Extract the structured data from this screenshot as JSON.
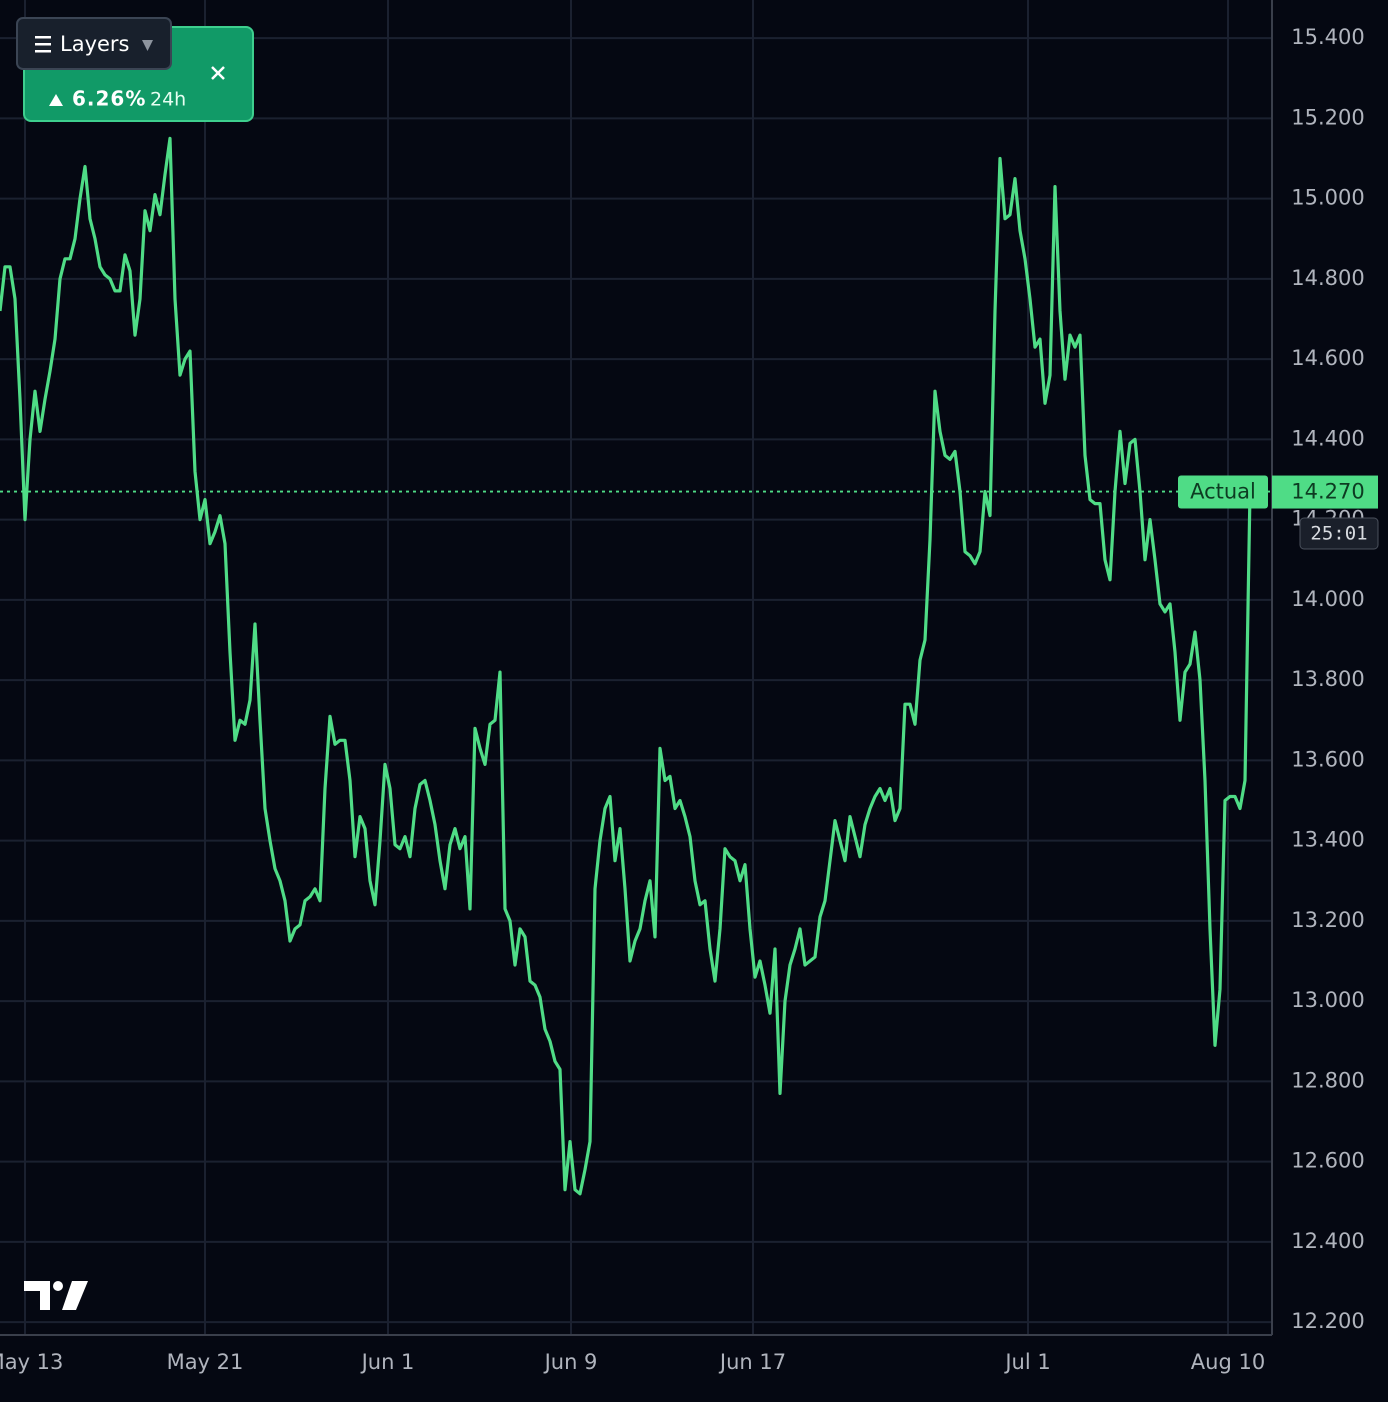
{
  "chart_data": {
    "type": "line",
    "series": [
      {
        "name": "Actual",
        "color": "#4fdc86",
        "values": [
          14.72,
          14.83,
          14.83,
          14.75,
          14.5,
          14.2,
          14.4,
          14.52,
          14.42,
          14.5,
          14.57,
          14.65,
          14.8,
          14.85,
          14.85,
          14.9,
          15.0,
          15.08,
          14.95,
          14.9,
          14.83,
          14.81,
          14.8,
          14.77,
          14.77,
          14.86,
          14.82,
          14.66,
          14.75,
          14.97,
          14.92,
          15.01,
          14.96,
          15.06,
          15.15,
          14.75,
          14.56,
          14.6,
          14.62,
          14.32,
          14.2,
          14.25,
          14.14,
          14.17,
          14.21,
          14.14,
          13.87,
          13.65,
          13.7,
          13.69,
          13.75,
          13.94,
          13.7,
          13.48,
          13.4,
          13.33,
          13.3,
          13.25,
          13.15,
          13.18,
          13.19,
          13.25,
          13.26,
          13.28,
          13.25,
          13.53,
          13.71,
          13.64,
          13.65,
          13.65,
          13.55,
          13.36,
          13.46,
          13.43,
          13.3,
          13.24,
          13.4,
          13.59,
          13.53,
          13.39,
          13.38,
          13.41,
          13.36,
          13.48,
          13.54,
          13.55,
          13.5,
          13.44,
          13.35,
          13.28,
          13.39,
          13.43,
          13.38,
          13.41,
          13.23,
          13.68,
          13.63,
          13.59,
          13.69,
          13.7,
          13.82,
          13.23,
          13.2,
          13.09,
          13.18,
          13.16,
          13.05,
          13.04,
          13.01,
          12.93,
          12.9,
          12.85,
          12.83,
          12.53,
          12.65,
          12.53,
          12.52,
          12.58,
          12.65,
          13.28,
          13.4,
          13.48,
          13.51,
          13.35,
          13.43,
          13.28,
          13.1,
          13.15,
          13.18,
          13.25,
          13.3,
          13.16,
          13.63,
          13.55,
          13.56,
          13.48,
          13.5,
          13.46,
          13.41,
          13.3,
          13.24,
          13.25,
          13.13,
          13.05,
          13.18,
          13.38,
          13.36,
          13.35,
          13.3,
          13.34,
          13.18,
          13.06,
          13.1,
          13.04,
          12.97,
          13.13,
          12.77,
          13.0,
          13.09,
          13.13,
          13.18,
          13.09,
          13.1,
          13.11,
          13.21,
          13.25,
          13.35,
          13.45,
          13.4,
          13.35,
          13.46,
          13.41,
          13.36,
          13.44,
          13.48,
          13.51,
          13.53,
          13.5,
          13.53,
          13.45,
          13.48,
          13.74,
          13.74,
          13.69,
          13.85,
          13.9,
          14.15,
          14.52,
          14.42,
          14.36,
          14.35,
          14.37,
          14.27,
          14.12,
          14.11,
          14.09,
          14.12,
          14.27,
          14.21,
          14.72,
          15.1,
          14.95,
          14.96,
          15.05,
          14.92,
          14.85,
          14.75,
          14.63,
          14.65,
          14.49,
          14.56,
          15.03,
          14.72,
          14.55,
          14.66,
          14.63,
          14.66,
          14.36,
          14.25,
          14.24,
          14.24,
          14.1,
          14.05,
          14.27,
          14.42,
          14.29,
          14.39,
          14.4,
          14.27,
          14.1,
          14.2,
          14.1,
          13.99,
          13.97,
          13.99,
          13.87,
          13.7,
          13.82,
          13.84,
          13.92,
          13.8,
          13.55,
          13.18,
          12.89,
          13.03,
          13.5,
          13.51,
          13.51,
          13.48,
          13.55,
          14.27
        ]
      }
    ],
    "xlim": [
      0,
      254.4
    ],
    "xticks": [
      {
        "value": 5,
        "label": "May 13"
      },
      {
        "value": 41,
        "label": "May 21"
      },
      {
        "value": 77.6,
        "label": "Jun 1"
      },
      {
        "value": 114.2,
        "label": "Jun 9"
      },
      {
        "value": 150.6,
        "label": "Jun 17"
      },
      {
        "value": 205.6,
        "label": "Jul 1"
      },
      {
        "value": 245.6,
        "label": "Aug 10"
      }
    ],
    "ylim": [
      12.168,
      15.495
    ],
    "yticks": [
      {
        "value": 12.2,
        "label": "12.200"
      },
      {
        "value": 12.4,
        "label": "12.400"
      },
      {
        "value": 12.6,
        "label": "12.600"
      },
      {
        "value": 12.8,
        "label": "12.800"
      },
      {
        "value": 13.0,
        "label": "13.000"
      },
      {
        "value": 13.2,
        "label": "13.200"
      },
      {
        "value": 13.4,
        "label": "13.400"
      },
      {
        "value": 13.6,
        "label": "13.600"
      },
      {
        "value": 13.8,
        "label": "13.800"
      },
      {
        "value": 14.0,
        "label": "14.000"
      },
      {
        "value": 14.2,
        "label": "14.200"
      },
      {
        "value": 14.4,
        "label": "14.400"
      },
      {
        "value": 14.6,
        "label": "14.600"
      },
      {
        "value": 14.8,
        "label": "14.800"
      },
      {
        "value": 15.0,
        "label": "15.000"
      },
      {
        "value": 15.2,
        "label": "15.200"
      },
      {
        "value": 15.4,
        "label": "15.400"
      }
    ],
    "grid": true,
    "last_price": {
      "value": 14.27,
      "label": "14.270"
    },
    "countdown": "25:01",
    "badge": {
      "change": 6.26,
      "change_label": "6.26%",
      "period": "24h"
    },
    "layers_button": "Layers"
  }
}
